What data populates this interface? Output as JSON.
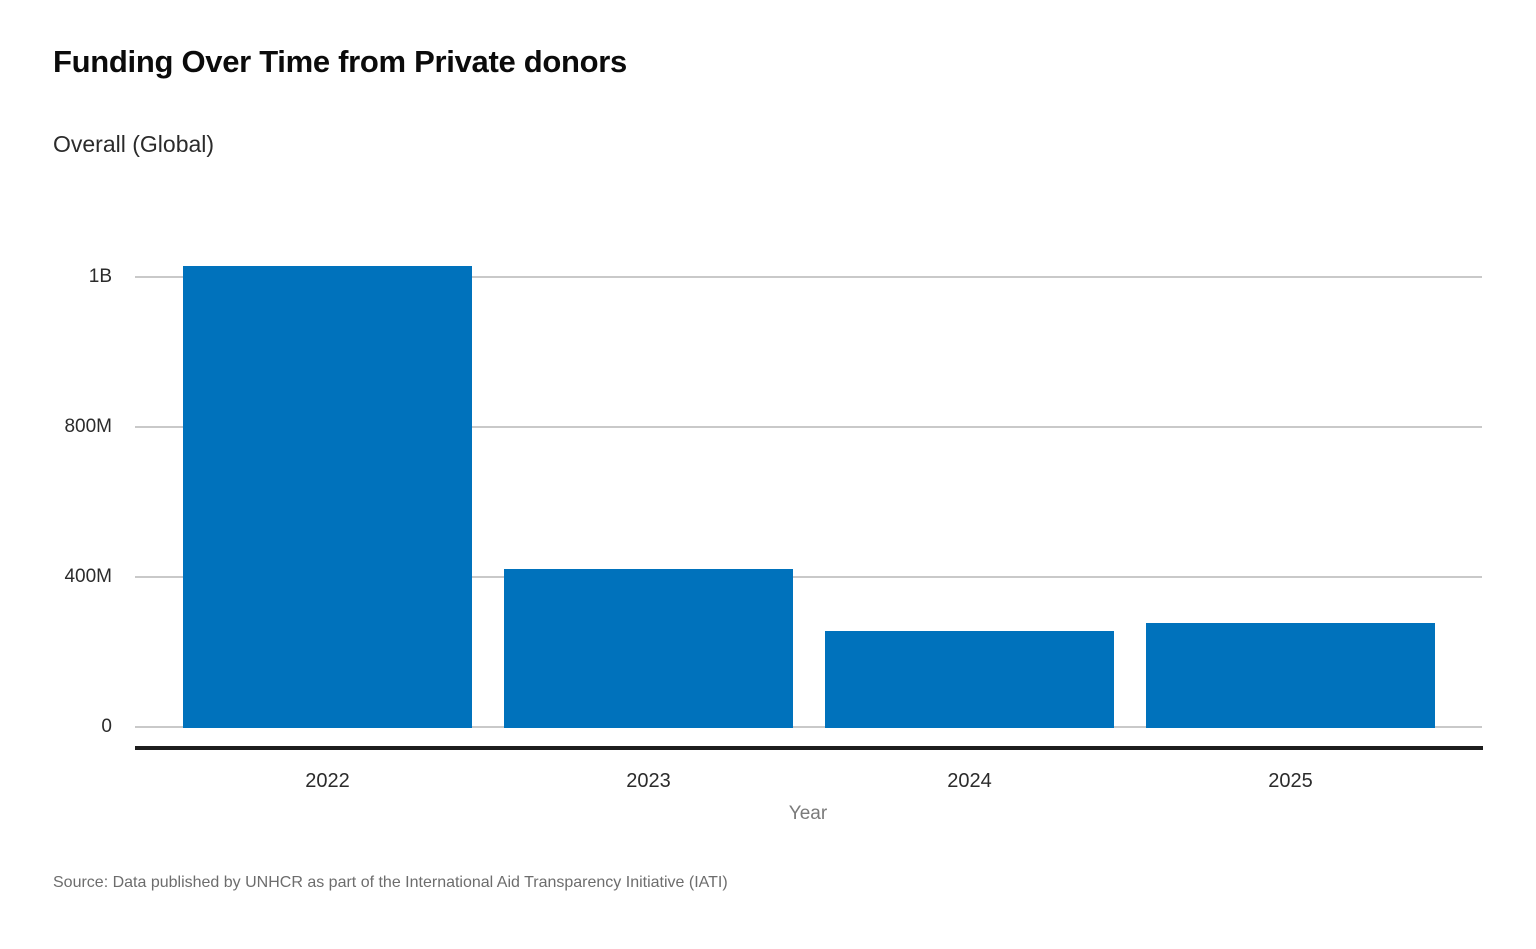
{
  "header": {
    "title": "Funding Over Time from Private donors",
    "subtitle": "Overall (Global)"
  },
  "chart_data": {
    "type": "bar",
    "title": "Funding Over Time from Private donors",
    "subtitle": "Overall (Global)",
    "xlabel": "Year",
    "ylabel": "",
    "categories": [
      "2022",
      "2023",
      "2024",
      "2025"
    ],
    "values_usd_millions": [
      1015,
      421,
      256,
      277
    ],
    "series": [
      {
        "name": "Funding",
        "values": [
          1015,
          421,
          256,
          277
        ]
      }
    ],
    "y_ticks": [
      {
        "label": "0",
        "value": 0
      },
      {
        "label": "400M",
        "value": 400
      },
      {
        "label": "800M",
        "value": 800
      },
      {
        "label": "1B",
        "value": 1000
      }
    ],
    "ylim": [
      0,
      1030
    ],
    "grid": "horizontal-only",
    "legend": "none",
    "bar_color": "#0072bc"
  },
  "footer": {
    "source": "Source: Data published by UNHCR as part of the International Aid Transparency Initiative (IATI)"
  },
  "colors": {
    "bar": "#0072bc",
    "gridline": "#c9c9c9",
    "axis_line": "#1d1d1d",
    "title_text": "#0b0b0b",
    "tick_text": "#2b2b2b",
    "muted_text": "#7a7a7a",
    "source_text": "#6d6d6d",
    "background": "#ffffff"
  }
}
